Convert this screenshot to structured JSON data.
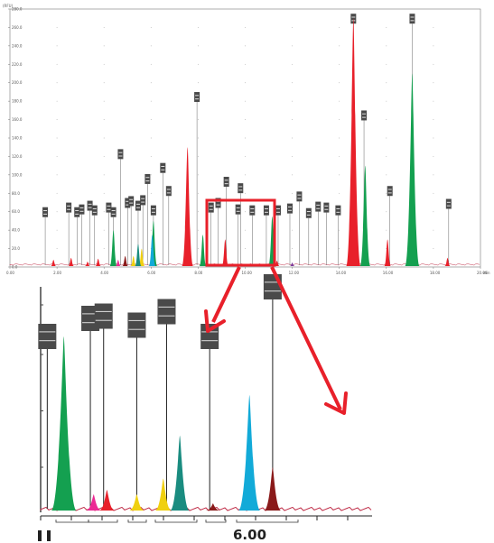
{
  "chart_data": [
    {
      "id": "overview",
      "type": "area",
      "title": "",
      "xlabel": "",
      "ylabel": "",
      "y_unit_label": "(RFU)",
      "x_unit_label": "min",
      "xlim": [
        0,
        20
      ],
      "ylim": [
        0,
        280
      ],
      "x_tick_labels": [
        "0.00",
        "2.00",
        "4.00",
        "6.00",
        "8.00",
        "10.00",
        "12.00",
        "14.00",
        "16.00",
        "18.00",
        "20.00"
      ],
      "y_tick_labels": [
        "0.0",
        "20.0",
        "40.0",
        "60.0",
        "80.0",
        "100.0",
        "120.0",
        "140.0",
        "160.0",
        "180.0",
        "200.0",
        "220.0",
        "240.0",
        "260.0",
        "280.0"
      ],
      "grid": true,
      "series": [
        {
          "color": "#e8202a",
          "peaks": [
            {
              "x": 1.85,
              "y": 8
            },
            {
              "x": 2.6,
              "y": 10
            },
            {
              "x": 3.3,
              "y": 6
            },
            {
              "x": 3.75,
              "y": 9
            },
            {
              "x": 7.55,
              "y": 130
            },
            {
              "x": 9.15,
              "y": 30
            },
            {
              "x": 11.35,
              "y": 7
            },
            {
              "x": 14.6,
              "y": 270
            },
            {
              "x": 16.05,
              "y": 30
            },
            {
              "x": 18.6,
              "y": 10
            }
          ]
        },
        {
          "color": "#14a050",
          "peaks": [
            {
              "x": 4.4,
              "y": 40
            },
            {
              "x": 6.1,
              "y": 50
            },
            {
              "x": 8.2,
              "y": 35
            },
            {
              "x": 11.15,
              "y": 55
            },
            {
              "x": 15.1,
              "y": 110
            },
            {
              "x": 17.1,
              "y": 210
            }
          ]
        },
        {
          "color": "#f0d010",
          "peaks": [
            {
              "x": 5.25,
              "y": 12
            },
            {
              "x": 5.6,
              "y": 20
            }
          ]
        },
        {
          "color": "#12aad8",
          "peaks": [
            {
              "x": 6.05,
              "y": 35
            }
          ]
        },
        {
          "color": "#1a8c80",
          "peaks": [
            {
              "x": 5.45,
              "y": 25
            }
          ]
        },
        {
          "color": "#ec2a94",
          "peaks": [
            {
              "x": 4.6,
              "y": 8
            }
          ]
        },
        {
          "color": "#8a1a1a",
          "peaks": [
            {
              "x": 4.9,
              "y": 12
            }
          ]
        },
        {
          "color": "#7a3a9a",
          "peaks": [
            {
              "x": 12.0,
              "y": 5
            }
          ]
        }
      ],
      "marker_labels": [
        {
          "x": 1.5,
          "y": 60
        },
        {
          "x": 2.5,
          "y": 65
        },
        {
          "x": 2.85,
          "y": 60
        },
        {
          "x": 3.05,
          "y": 63
        },
        {
          "x": 3.4,
          "y": 67
        },
        {
          "x": 3.6,
          "y": 62
        },
        {
          "x": 4.2,
          "y": 65
        },
        {
          "x": 4.4,
          "y": 60
        },
        {
          "x": 4.7,
          "y": 123
        },
        {
          "x": 5.0,
          "y": 70
        },
        {
          "x": 5.15,
          "y": 72
        },
        {
          "x": 5.45,
          "y": 67
        },
        {
          "x": 5.65,
          "y": 73
        },
        {
          "x": 5.85,
          "y": 96
        },
        {
          "x": 6.1,
          "y": 62
        },
        {
          "x": 6.5,
          "y": 108
        },
        {
          "x": 6.75,
          "y": 83
        },
        {
          "x": 7.95,
          "y": 185
        },
        {
          "x": 8.55,
          "y": 65
        },
        {
          "x": 8.85,
          "y": 70
        },
        {
          "x": 9.2,
          "y": 93
        },
        {
          "x": 9.7,
          "y": 63
        },
        {
          "x": 9.8,
          "y": 86
        },
        {
          "x": 10.3,
          "y": 62
        },
        {
          "x": 10.9,
          "y": 62
        },
        {
          "x": 11.4,
          "y": 62
        },
        {
          "x": 11.9,
          "y": 64
        },
        {
          "x": 12.3,
          "y": 77
        },
        {
          "x": 12.7,
          "y": 59
        },
        {
          "x": 13.1,
          "y": 66
        },
        {
          "x": 13.45,
          "y": 65
        },
        {
          "x": 13.95,
          "y": 62
        },
        {
          "x": 14.6,
          "y": 270
        },
        {
          "x": 15.05,
          "y": 165
        },
        {
          "x": 16.15,
          "y": 83
        },
        {
          "x": 17.1,
          "y": 270
        },
        {
          "x": 18.65,
          "y": 69
        }
      ]
    },
    {
      "id": "zoom",
      "type": "area",
      "title": "",
      "xlabel": "",
      "ylabel": "",
      "x_tick_labels": [
        "",
        "",
        "6.00"
      ],
      "series": [
        {
          "color": "#14a050",
          "peaks": [
            {
              "x": 0.07,
              "y": 0.78
            }
          ]
        },
        {
          "color": "#ec2a94",
          "peaks": [
            {
              "x": 0.16,
              "y": 0.08
            }
          ]
        },
        {
          "color": "#e8202a",
          "peaks": [
            {
              "x": 0.2,
              "y": 0.1
            }
          ]
        },
        {
          "color": "#f0d010",
          "peaks": [
            {
              "x": 0.29,
              "y": 0.08
            },
            {
              "x": 0.37,
              "y": 0.15
            }
          ]
        },
        {
          "color": "#1a8c80",
          "peaks": [
            {
              "x": 0.42,
              "y": 0.34
            }
          ]
        },
        {
          "color": "#8a1a1a",
          "peaks": [
            {
              "x": 0.52,
              "y": 0.04
            },
            {
              "x": 0.7,
              "y": 0.2
            }
          ]
        },
        {
          "color": "#12aad8",
          "peaks": [
            {
              "x": 0.63,
              "y": 0.52
            }
          ]
        }
      ],
      "marker_labels": [
        {
          "x": 0.02,
          "y": 0.78
        },
        {
          "x": 0.15,
          "y": 0.86
        },
        {
          "x": 0.19,
          "y": 0.87
        },
        {
          "x": 0.29,
          "y": 0.83
        },
        {
          "x": 0.38,
          "y": 0.89
        },
        {
          "x": 0.51,
          "y": 0.78
        },
        {
          "x": 0.7,
          "y": 1.0
        }
      ]
    }
  ]
}
